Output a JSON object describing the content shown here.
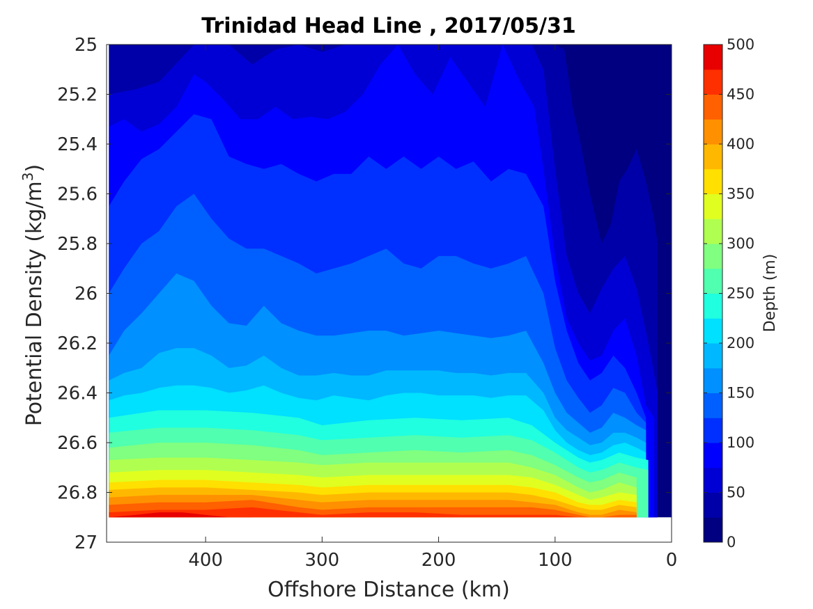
{
  "chart_data": {
    "type": "contour",
    "title": "Trinidad Head Line , 2017/05/31",
    "xlabel": "Offshore Distance (km)",
    "ylabel": "Potential Density (kg/m",
    "ylabel_superscript": "3",
    "ylabel_suffix": ")",
    "x_reversed": true,
    "y_reversed": true,
    "xlim": [
      485,
      0
    ],
    "ylim": [
      25,
      27
    ],
    "x_ticks": [
      400,
      300,
      200,
      100,
      0
    ],
    "y_ticks": [
      25,
      25.2,
      25.4,
      25.6,
      25.8,
      26,
      26.2,
      26.4,
      26.6,
      26.8,
      27
    ],
    "colorbar": {
      "label": "Depth (m)",
      "range": [
        0,
        500
      ],
      "step": 25,
      "ticks": [
        0,
        50,
        100,
        150,
        200,
        250,
        300,
        350,
        400,
        450,
        500
      ],
      "colors": [
        "#000080",
        "#0000a8",
        "#0000d4",
        "#0000ff",
        "#0030ff",
        "#0060ff",
        "#0090ff",
        "#00b8ff",
        "#00e0ff",
        "#20ffe0",
        "#50ffaf",
        "#80ff80",
        "#b0ff50",
        "#e0ff20",
        "#ffe000",
        "#ffb800",
        "#ff9000",
        "#ff6000",
        "#ff3000",
        "#e80000"
      ]
    },
    "data_extent": {
      "x_range": [
        483,
        12
      ],
      "density_max": 26.9
    },
    "contours": [
      {
        "depth": 25,
        "x": [
          483,
          450,
          420,
          400,
          380,
          360,
          340,
          320,
          300,
          280,
          260,
          240,
          220,
          200,
          180,
          160,
          140,
          120,
          112,
          106,
          100,
          92,
          85,
          78,
          70,
          60,
          52,
          45,
          38,
          30,
          22,
          15,
          12
        ],
        "density": [
          25.0,
          25.0,
          25.0,
          25.0,
          25.0,
          25.0,
          25.0,
          25.0,
          25.0,
          25.0,
          25.0,
          25.0,
          25.0,
          25.0,
          25.0,
          25.0,
          25.0,
          25.0,
          25.0,
          25.0,
          25.0,
          25.02,
          25.25,
          25.4,
          25.6,
          25.8,
          25.72,
          25.55,
          25.5,
          25.42,
          25.55,
          25.7,
          25.8
        ]
      },
      {
        "depth": 50,
        "x": [
          483,
          460,
          440,
          420,
          410,
          400,
          380,
          360,
          340,
          320,
          300,
          280,
          260,
          240,
          220,
          200,
          180,
          160,
          140,
          120,
          110,
          100,
          90,
          80,
          70,
          60,
          50,
          40,
          30,
          20,
          12
        ],
        "density": [
          25.2,
          25.18,
          25.15,
          25.05,
          25.0,
          25.0,
          25.0,
          25.08,
          25.02,
          25.0,
          25.03,
          25.0,
          25.0,
          25.0,
          25.0,
          25.0,
          25.0,
          25.0,
          25.0,
          25.0,
          25.1,
          25.5,
          25.85,
          26.0,
          26.08,
          25.98,
          25.9,
          25.85,
          25.98,
          26.2,
          26.4
        ]
      },
      {
        "depth": 75,
        "x": [
          483,
          470,
          455,
          440,
          425,
          410,
          400,
          385,
          370,
          355,
          340,
          325,
          310,
          295,
          280,
          265,
          250,
          235,
          220,
          205,
          190,
          175,
          160,
          145,
          130,
          118,
          110,
          100,
          90,
          80,
          70,
          60,
          50,
          40,
          30,
          22,
          15
        ],
        "density": [
          25.33,
          25.3,
          25.35,
          25.32,
          25.25,
          25.12,
          25.15,
          25.22,
          25.3,
          25.3,
          25.25,
          25.3,
          25.29,
          25.3,
          25.27,
          25.2,
          25.08,
          25.0,
          25.12,
          25.2,
          25.05,
          25.15,
          25.25,
          25.0,
          25.15,
          25.25,
          25.5,
          25.85,
          26.1,
          26.2,
          26.27,
          26.25,
          26.15,
          26.1,
          26.25,
          26.45,
          26.5
        ]
      },
      {
        "depth": 100,
        "x": [
          483,
          470,
          455,
          440,
          425,
          410,
          395,
          380,
          365,
          350,
          335,
          320,
          305,
          290,
          275,
          260,
          245,
          230,
          215,
          200,
          185,
          170,
          155,
          140,
          125,
          110,
          100,
          90,
          80,
          70,
          60,
          50,
          40,
          30,
          22
        ],
        "density": [
          25.65,
          25.55,
          25.46,
          25.42,
          25.35,
          25.28,
          25.3,
          25.45,
          25.48,
          25.5,
          25.48,
          25.52,
          25.55,
          25.52,
          25.52,
          25.45,
          25.5,
          25.45,
          25.5,
          25.45,
          25.5,
          25.47,
          25.55,
          25.5,
          25.52,
          25.65,
          25.95,
          26.15,
          26.28,
          26.35,
          26.32,
          26.25,
          26.3,
          26.4,
          26.5
        ]
      },
      {
        "depth": 125,
        "x": [
          483,
          470,
          455,
          440,
          425,
          410,
          395,
          380,
          365,
          350,
          335,
          320,
          305,
          290,
          275,
          260,
          245,
          230,
          215,
          200,
          185,
          170,
          155,
          140,
          125,
          110,
          100,
          90,
          80,
          70,
          60,
          50,
          40,
          30,
          22
        ],
        "density": [
          26.0,
          25.9,
          25.8,
          25.75,
          25.65,
          25.6,
          25.7,
          25.78,
          25.82,
          25.82,
          25.85,
          25.88,
          25.92,
          25.9,
          25.88,
          25.85,
          25.82,
          25.88,
          25.9,
          25.85,
          25.85,
          25.88,
          25.9,
          25.88,
          25.85,
          26.0,
          26.22,
          26.35,
          26.42,
          26.48,
          26.45,
          26.38,
          26.4,
          26.48,
          26.52
        ]
      },
      {
        "depth": 150,
        "x": [
          483,
          470,
          455,
          440,
          425,
          410,
          395,
          380,
          365,
          350,
          335,
          320,
          305,
          290,
          275,
          260,
          245,
          230,
          215,
          200,
          185,
          170,
          155,
          140,
          125,
          110,
          100,
          90,
          80,
          70,
          60,
          50,
          40,
          30,
          22
        ],
        "density": [
          26.25,
          26.15,
          26.08,
          26.0,
          25.92,
          25.95,
          26.05,
          26.12,
          26.13,
          26.05,
          26.12,
          26.15,
          26.17,
          26.17,
          26.16,
          26.15,
          26.15,
          26.17,
          26.16,
          26.15,
          26.16,
          26.17,
          26.18,
          26.17,
          26.15,
          26.28,
          26.4,
          26.48,
          26.52,
          26.56,
          26.54,
          26.48,
          26.5,
          26.53,
          26.55
        ]
      },
      {
        "depth": 175,
        "x": [
          483,
          470,
          455,
          440,
          425,
          410,
          395,
          380,
          365,
          350,
          335,
          320,
          305,
          290,
          275,
          260,
          245,
          230,
          215,
          200,
          185,
          170,
          155,
          140,
          125,
          110,
          100,
          90,
          80,
          70,
          60,
          50,
          40,
          30,
          22
        ],
        "density": [
          26.35,
          26.32,
          26.3,
          26.24,
          26.22,
          26.22,
          26.25,
          26.3,
          26.29,
          26.25,
          26.3,
          26.33,
          26.33,
          26.32,
          26.33,
          26.33,
          26.31,
          26.31,
          26.31,
          26.31,
          26.32,
          26.32,
          26.33,
          26.32,
          26.32,
          26.4,
          26.5,
          26.55,
          26.58,
          26.61,
          26.6,
          26.56,
          26.56,
          26.58,
          26.6
        ]
      },
      {
        "depth": 200,
        "x": [
          483,
          470,
          455,
          440,
          425,
          410,
          395,
          380,
          365,
          350,
          335,
          320,
          305,
          290,
          275,
          260,
          245,
          230,
          215,
          200,
          185,
          170,
          155,
          140,
          125,
          110,
          100,
          90,
          80,
          70,
          60,
          50,
          40,
          30,
          22
        ],
        "density": [
          26.43,
          26.41,
          26.4,
          26.38,
          26.37,
          26.37,
          26.38,
          26.4,
          26.39,
          26.37,
          26.4,
          26.42,
          26.43,
          26.41,
          26.42,
          26.43,
          26.41,
          26.4,
          26.4,
          26.41,
          26.41,
          26.41,
          26.42,
          26.41,
          26.41,
          26.47,
          26.55,
          26.6,
          26.63,
          26.65,
          26.64,
          26.61,
          26.6,
          26.62,
          26.64
        ]
      },
      {
        "depth": 225,
        "x": [
          483,
          440,
          400,
          360,
          320,
          300,
          260,
          220,
          180,
          140,
          120,
          100,
          80,
          70,
          60,
          45,
          30,
          20
        ],
        "density": [
          26.5,
          26.47,
          26.47,
          26.48,
          26.5,
          26.53,
          26.51,
          26.5,
          26.51,
          26.5,
          26.53,
          26.6,
          26.66,
          26.68,
          26.67,
          26.64,
          26.66,
          26.67
        ]
      },
      {
        "depth": 250,
        "x": [
          483,
          440,
          400,
          360,
          320,
          300,
          260,
          220,
          180,
          140,
          120,
          100,
          80,
          70,
          60,
          45,
          30,
          20
        ],
        "density": [
          26.56,
          26.54,
          26.54,
          26.55,
          26.57,
          26.59,
          26.58,
          26.57,
          26.58,
          26.57,
          26.59,
          26.64,
          26.7,
          26.72,
          26.71,
          26.68,
          26.7,
          26.71
        ]
      },
      {
        "depth": 275,
        "x": [
          483,
          440,
          400,
          360,
          320,
          300,
          260,
          220,
          180,
          140,
          120,
          100,
          80,
          70,
          60,
          45,
          30
        ],
        "density": [
          26.62,
          26.6,
          26.6,
          26.61,
          26.63,
          26.65,
          26.64,
          26.63,
          26.64,
          26.63,
          26.65,
          26.69,
          26.74,
          26.76,
          26.75,
          26.72,
          26.74
        ]
      },
      {
        "depth": 300,
        "x": [
          483,
          440,
          400,
          360,
          320,
          300,
          260,
          220,
          180,
          140,
          120,
          100,
          80,
          70,
          60,
          45,
          30
        ],
        "density": [
          26.67,
          26.66,
          26.66,
          26.67,
          26.68,
          26.69,
          26.68,
          26.68,
          26.68,
          26.68,
          26.7,
          26.73,
          26.78,
          26.8,
          26.79,
          26.76,
          26.78
        ]
      },
      {
        "depth": 325,
        "x": [
          483,
          440,
          400,
          360,
          320,
          300,
          260,
          220,
          180,
          140,
          120,
          100,
          80,
          70,
          60,
          45,
          30
        ],
        "density": [
          26.72,
          26.71,
          26.71,
          26.72,
          26.73,
          26.74,
          26.73,
          26.73,
          26.73,
          26.73,
          26.74,
          26.77,
          26.81,
          26.83,
          26.82,
          26.8,
          26.81
        ]
      },
      {
        "depth": 350,
        "x": [
          483,
          440,
          400,
          360,
          320,
          300,
          260,
          220,
          180,
          140,
          120,
          100,
          80,
          70,
          60,
          45,
          30
        ],
        "density": [
          26.76,
          26.75,
          26.75,
          26.76,
          26.77,
          26.78,
          26.77,
          26.77,
          26.77,
          26.77,
          26.78,
          26.8,
          26.84,
          26.85,
          26.85,
          26.83,
          26.84
        ]
      },
      {
        "depth": 375,
        "x": [
          483,
          440,
          400,
          360,
          320,
          300,
          260,
          220,
          180,
          140,
          120,
          100,
          80,
          70,
          60,
          45,
          30
        ],
        "density": [
          26.79,
          26.78,
          26.78,
          26.79,
          26.8,
          26.81,
          26.8,
          26.8,
          26.8,
          26.8,
          26.81,
          26.83,
          26.86,
          26.87,
          26.87,
          26.85,
          26.86
        ]
      },
      {
        "depth": 400,
        "x": [
          483,
          440,
          400,
          360,
          320,
          300,
          260,
          220,
          180,
          140,
          120,
          100,
          80,
          70,
          60,
          45,
          30
        ],
        "density": [
          26.82,
          26.81,
          26.81,
          26.81,
          26.83,
          26.84,
          26.83,
          26.83,
          26.83,
          26.83,
          26.84,
          26.85,
          26.88,
          26.89,
          26.89,
          26.87,
          26.88
        ]
      },
      {
        "depth": 425,
        "x": [
          483,
          440,
          400,
          360,
          320,
          300,
          260,
          220,
          180,
          140,
          120,
          100,
          80,
          70,
          60,
          45,
          30
        ],
        "density": [
          26.85,
          26.84,
          26.84,
          26.83,
          26.86,
          26.87,
          26.86,
          26.86,
          26.86,
          26.86,
          26.86,
          26.87,
          26.89,
          26.9,
          26.9,
          26.89,
          26.89
        ]
      },
      {
        "depth": 450,
        "x": [
          483,
          440,
          400,
          360,
          320,
          300,
          260,
          220,
          180,
          140,
          120,
          100,
          80,
          70,
          60,
          45,
          30
        ],
        "density": [
          26.88,
          26.87,
          26.87,
          26.86,
          26.88,
          26.89,
          26.88,
          26.88,
          26.89,
          26.89,
          26.89,
          26.89,
          26.9,
          26.9,
          26.9,
          26.9,
          26.9
        ]
      },
      {
        "depth": 475,
        "x": [
          483,
          460,
          440,
          420,
          400,
          380,
          360
        ],
        "density": [
          26.9,
          26.89,
          26.88,
          26.88,
          26.89,
          26.9,
          26.9
        ]
      }
    ]
  }
}
